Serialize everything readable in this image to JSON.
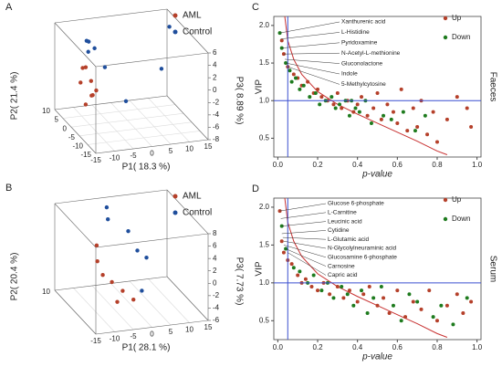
{
  "chart_data": [
    {
      "type": "scatter3d",
      "panel": "A",
      "xlabel": "P1( 18.3 %)",
      "ylabel": "P2( 21.4 %)",
      "zlabel": "P3( 8.89 %)",
      "xlim": [
        -15,
        15
      ],
      "ylim": [
        -15,
        10
      ],
      "zlim": [
        -8,
        6
      ],
      "xticks": [
        -15,
        -10,
        -5,
        0,
        5,
        10,
        15
      ],
      "yticks": [
        10,
        5,
        0,
        -5,
        -10,
        -15
      ],
      "zticks": [
        6,
        4,
        2,
        0,
        -2,
        -4,
        -6,
        -8
      ],
      "series": [
        {
          "name": "AML",
          "color": "#b5402a",
          "x": [
            -12,
            -11,
            -12.5,
            -11,
            -10,
            -12,
            -10.5,
            -11.5
          ],
          "y": [
            -2,
            -3,
            0,
            -4,
            -1,
            -2,
            -5,
            1
          ],
          "z": [
            2,
            0,
            -1,
            -2,
            -3,
            -4,
            -1,
            1
          ]
        },
        {
          "name": "Control",
          "color": "#1f4e9c",
          "x": [
            -10,
            -9,
            -10,
            -7,
            -6,
            10,
            -3,
            13
          ],
          "y": [
            2,
            3,
            1,
            4,
            0,
            2,
            -6,
            4
          ],
          "z": [
            5,
            4.5,
            3.5,
            3,
            1,
            -1,
            -3,
            5
          ]
        }
      ]
    },
    {
      "type": "scatter3d",
      "panel": "B",
      "xlabel": "P1( 28.1 %)",
      "ylabel": "P2( 20.4 %)",
      "zlabel": "P3( 7.73 %)",
      "xlim": [
        -15,
        15
      ],
      "ylim": [
        -15,
        10
      ],
      "zlim": [
        -6,
        8
      ],
      "xticks": [
        -15,
        -10,
        -5,
        0,
        5,
        10,
        15
      ],
      "yticks": [
        10
      ],
      "zticks": [
        8,
        6,
        4,
        2,
        0,
        -2,
        -4,
        -6
      ],
      "series": [
        {
          "name": "AML",
          "color": "#b5402a",
          "x": [
            -8,
            -5,
            -3,
            -1,
            -4,
            -6,
            -7
          ],
          "y": [
            0,
            -2,
            -4,
            -6,
            -3,
            5,
            -1
          ],
          "z": [
            1,
            -2,
            -3,
            -4,
            -5,
            2,
            -1
          ]
        },
        {
          "name": "Control",
          "color": "#1f4e9c",
          "x": [
            -3,
            2,
            4,
            6,
            3,
            -2
          ],
          "y": [
            5,
            4,
            3,
            2,
            -2,
            8
          ],
          "z": [
            6,
            4,
            1,
            0,
            -4,
            7
          ]
        }
      ]
    },
    {
      "type": "scatter",
      "panel": "C",
      "xlabel": "p-value",
      "ylabel": "VIP",
      "side_label": "Faeces",
      "xlim": [
        -0.02,
        1.02
      ],
      "ylim": [
        0.25,
        2.12
      ],
      "xticks": [
        {
          "value": 0,
          "label": "0.0"
        },
        0.2,
        0.4,
        0.6,
        0.8,
        {
          "value": 1,
          "label": "1.0"
        }
      ],
      "yticks": [
        0.5,
        {
          "value": 1,
          "label": "1.0"
        },
        1.5,
        {
          "value": 2,
          "label": "2.0"
        }
      ],
      "hline": 1,
      "vline": 0.05,
      "line_color": "#3a4fd0",
      "fit_curve": {
        "color": "#c83232",
        "x": [
          0.035,
          0.05,
          0.08,
          0.12,
          0.2,
          0.3,
          0.4,
          0.5,
          0.6,
          0.7,
          0.8,
          0.85
        ],
        "y": [
          2.12,
          1.8,
          1.55,
          1.35,
          1.12,
          0.95,
          0.82,
          0.7,
          0.58,
          0.46,
          0.33,
          0.28
        ]
      },
      "series": [
        {
          "name": "Up",
          "color": "#b5402a",
          "x": [
            0.02,
            0.03,
            0.05,
            0.08,
            0.1,
            0.12,
            0.15,
            0.18,
            0.2,
            0.22,
            0.25,
            0.28,
            0.3,
            0.32,
            0.35,
            0.38,
            0.4,
            0.42,
            0.45,
            0.48,
            0.5,
            0.52,
            0.55,
            0.58,
            0.6,
            0.62,
            0.65,
            0.68,
            0.7,
            0.72,
            0.75,
            0.78,
            0.8,
            0.85,
            0.9,
            0.95,
            0.97
          ],
          "y": [
            1.8,
            1.62,
            1.45,
            1.35,
            1.3,
            1.2,
            1.25,
            1.1,
            1.15,
            1.05,
            1.0,
            0.95,
            1.1,
            0.9,
            1.0,
            0.85,
            0.95,
            1.05,
            0.8,
            0.9,
            1.1,
            0.75,
            0.95,
            0.85,
            0.7,
            1.15,
            0.6,
            0.9,
            0.65,
            1.0,
            0.55,
            0.85,
            0.45,
            0.75,
            1.05,
            0.9,
            0.65
          ]
        },
        {
          "name": "Down",
          "color": "#1e7b1e",
          "x": [
            0.01,
            0.02,
            0.04,
            0.06,
            0.07,
            0.09,
            0.11,
            0.13,
            0.16,
            0.19,
            0.21,
            0.24,
            0.27,
            0.29,
            0.31,
            0.34,
            0.36,
            0.37,
            0.39,
            0.41,
            0.44,
            0.47,
            0.53,
            0.57,
            0.63,
            0.69,
            0.74
          ],
          "y": [
            1.9,
            1.7,
            1.5,
            1.4,
            1.25,
            1.3,
            1.15,
            1.2,
            1.05,
            1.1,
            0.95,
            1.0,
            1.05,
            0.9,
            0.95,
            1.0,
            0.8,
            1.0,
            0.9,
            0.85,
            1.0,
            0.7,
            0.8,
            0.75,
            0.85,
            0.6,
            0.8
          ]
        }
      ],
      "annotations": [
        {
          "text": "Xanthurenic acid",
          "color": "#228b22",
          "x": 0.01,
          "y": 1.9
        },
        {
          "text": "L-Histidine",
          "color": "#c0392b",
          "x": 0.015,
          "y": 1.82
        },
        {
          "text": "Pyridoxamine",
          "color": "#228b22",
          "x": 0.02,
          "y": 1.7
        },
        {
          "text": "N-Acetyl-L-methionine",
          "color": "#c0392b",
          "x": 0.03,
          "y": 1.62
        },
        {
          "text": "Gluconolactone",
          "color": "#c0392b",
          "x": 0.035,
          "y": 1.55
        },
        {
          "text": "Indole",
          "color": "#228b22",
          "x": 0.04,
          "y": 1.5
        },
        {
          "text": "5-Methylcytosine",
          "color": "#228b22",
          "x": 0.05,
          "y": 1.45
        }
      ]
    },
    {
      "type": "scatter",
      "panel": "D",
      "xlabel": "p-value",
      "ylabel": "VIP",
      "side_label": "Serum",
      "xlim": [
        -0.02,
        1.02
      ],
      "ylim": [
        0.25,
        2.12
      ],
      "xticks": [
        {
          "value": 0,
          "label": "0.0"
        },
        0.2,
        0.4,
        0.6,
        0.8,
        {
          "value": 1,
          "label": "1.0"
        }
      ],
      "yticks": [
        0.5,
        {
          "value": 1,
          "label": "1.0"
        },
        1.5,
        {
          "value": 2,
          "label": "2.0"
        }
      ],
      "hline": 1,
      "vline": 0.05,
      "line_color": "#3a4fd0",
      "fit_curve": {
        "color": "#c83232",
        "x": [
          0.035,
          0.05,
          0.08,
          0.12,
          0.2,
          0.3,
          0.4,
          0.5,
          0.6,
          0.7,
          0.8,
          0.85
        ],
        "y": [
          2.12,
          1.8,
          1.55,
          1.35,
          1.12,
          0.95,
          0.82,
          0.7,
          0.58,
          0.46,
          0.33,
          0.28
        ]
      },
      "series": [
        {
          "name": "Up",
          "color": "#b5402a",
          "x": [
            0.01,
            0.02,
            0.03,
            0.05,
            0.07,
            0.1,
            0.12,
            0.14,
            0.17,
            0.2,
            0.23,
            0.26,
            0.3,
            0.33,
            0.36,
            0.4,
            0.43,
            0.46,
            0.5,
            0.53,
            0.56,
            0.6,
            0.64,
            0.68,
            0.72,
            0.76,
            0.8,
            0.85,
            0.9,
            0.93,
            0.97
          ],
          "y": [
            1.95,
            1.55,
            1.4,
            1.3,
            1.25,
            1.1,
            1.0,
            1.05,
            0.95,
            0.9,
            1.0,
            0.85,
            0.95,
            0.8,
            0.9,
            0.75,
            0.85,
            0.95,
            0.7,
            0.8,
            0.6,
            0.9,
            0.55,
            0.75,
            0.65,
            0.9,
            0.5,
            0.7,
            0.85,
            0.6,
            0.75
          ]
        },
        {
          "name": "Down",
          "color": "#1e7b1e",
          "x": [
            0.02,
            0.04,
            0.08,
            0.11,
            0.15,
            0.18,
            0.22,
            0.25,
            0.28,
            0.32,
            0.35,
            0.38,
            0.42,
            0.45,
            0.48,
            0.52,
            0.58,
            0.62,
            0.66,
            0.7,
            0.78,
            0.82,
            0.88,
            0.95
          ],
          "y": [
            1.75,
            1.45,
            1.2,
            1.15,
            1.0,
            1.1,
            0.9,
            1.0,
            0.8,
            0.95,
            0.85,
            0.7,
            0.9,
            0.6,
            0.8,
            0.95,
            0.7,
            0.5,
            0.85,
            0.75,
            0.55,
            0.7,
            0.45,
            0.8
          ]
        }
      ],
      "annotations": [
        {
          "text": "Glucose 6-phosphate",
          "color": "#c0392b",
          "x": 0.01,
          "y": 1.95
        },
        {
          "text": "L-Carnitine",
          "color": "#c0392b",
          "x": 0.015,
          "y": 1.85
        },
        {
          "text": "Leucinic acid",
          "color": "#c0392b",
          "x": 0.02,
          "y": 1.75
        },
        {
          "text": "Cytidine",
          "color": "#333333",
          "x": 0.02,
          "y": 1.65
        },
        {
          "text": "L-Glutamic acid",
          "color": "#228b22",
          "x": 0.025,
          "y": 1.6
        },
        {
          "text": "N-Glycolylneuraminic acid",
          "color": "#c0392b",
          "x": 0.03,
          "y": 1.55
        },
        {
          "text": "Glucosamine 6-phosphate",
          "color": "#c0392b",
          "x": 0.03,
          "y": 1.5
        },
        {
          "text": "Carnosine",
          "color": "#c0392b",
          "x": 0.04,
          "y": 1.45
        },
        {
          "text": "Capric acid",
          "color": "#228b22",
          "x": 0.05,
          "y": 1.4
        }
      ]
    }
  ]
}
